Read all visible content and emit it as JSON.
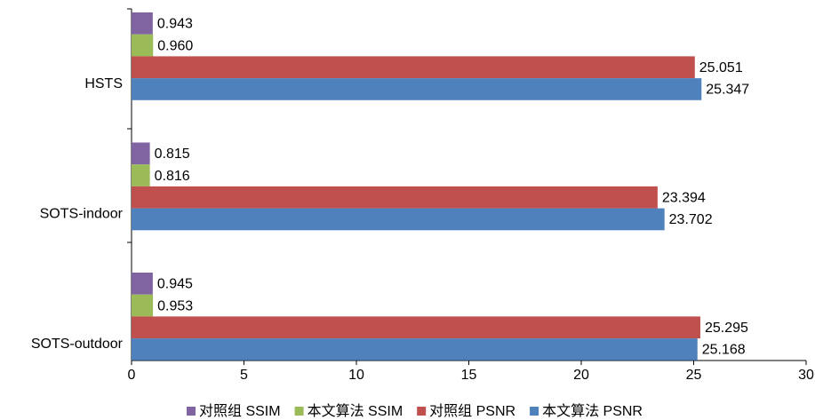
{
  "chart_data": {
    "type": "bar",
    "orientation": "horizontal",
    "categories": [
      "HSTS",
      "SOTS-indoor",
      "SOTS-outdoor"
    ],
    "series": [
      {
        "name": "对照组 SSIM",
        "color": "#8064a2",
        "values": [
          0.943,
          0.815,
          0.945
        ]
      },
      {
        "name": "本文算法 SSIM",
        "color": "#9bbb59",
        "values": [
          0.96,
          0.816,
          0.953
        ],
        "value_labels": [
          "0.960",
          "0.816",
          "0.953"
        ]
      },
      {
        "name": "对照组 PSNR",
        "color": "#c0504d",
        "values": [
          25.051,
          23.394,
          25.295
        ]
      },
      {
        "name": "本文算法 PSNR",
        "color": "#4f81bd",
        "values": [
          25.347,
          23.702,
          25.168
        ]
      }
    ],
    "xlim": [
      0,
      30
    ],
    "xticks": [
      0,
      5,
      10,
      15,
      20,
      25,
      30
    ],
    "legend": "bottom"
  }
}
